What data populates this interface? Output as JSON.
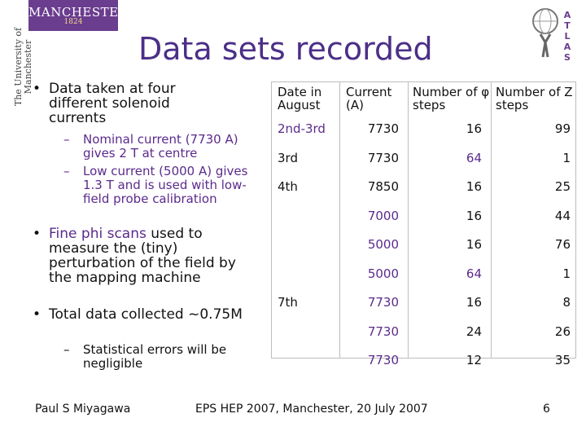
{
  "logo": {
    "name": "MANCHESTER",
    "year": "1824",
    "university_vertical": "The University of Manchester"
  },
  "atlas": {
    "letters": [
      "A",
      "T",
      "L",
      "A",
      "S"
    ]
  },
  "title": "Data sets recorded",
  "left": {
    "bullet1": "Data taken at four different solenoid currents",
    "sub1": "Nominal current (7730 A) gives 2 T at centre",
    "sub2": "Low current (5000 A) gives 1.3 T and is used with low-field probe calibration",
    "bullet2a": "Fine phi scans",
    "bullet2b": "used to measure the (tiny) perturbation of the field by the mapping machine",
    "bullet3": "Total data collected ~0.75M",
    "sub3": "Statistical errors will be negligible"
  },
  "table": {
    "headers": [
      "Date in August",
      "Current (A)",
      "Number of φ steps",
      "Number of Z steps"
    ],
    "rows": [
      [
        "2nd-3rd",
        "7730",
        "16",
        "99"
      ],
      [
        "3rd",
        "7730",
        "64",
        "1"
      ],
      [
        "4th",
        "7850",
        "16",
        "25"
      ],
      [
        "",
        "7000",
        "16",
        "44"
      ],
      [
        "",
        "5000",
        "16",
        "76"
      ],
      [
        "",
        "5000",
        "64",
        "1"
      ],
      [
        "7th",
        "7730",
        "16",
        "8"
      ],
      [
        "",
        "7730",
        "24",
        "26"
      ],
      [
        "",
        "7730",
        "12",
        "35"
      ]
    ],
    "purple_cells": [
      [
        0,
        0
      ],
      [
        1,
        2
      ],
      [
        3,
        1
      ],
      [
        4,
        1
      ],
      [
        5,
        1
      ],
      [
        5,
        2
      ],
      [
        6,
        1
      ],
      [
        7,
        1
      ],
      [
        8,
        1
      ]
    ]
  },
  "footer": {
    "author": "Paul S Miyagawa",
    "event": "EPS HEP 2007, Manchester, 20 July 2007",
    "page": "6"
  }
}
